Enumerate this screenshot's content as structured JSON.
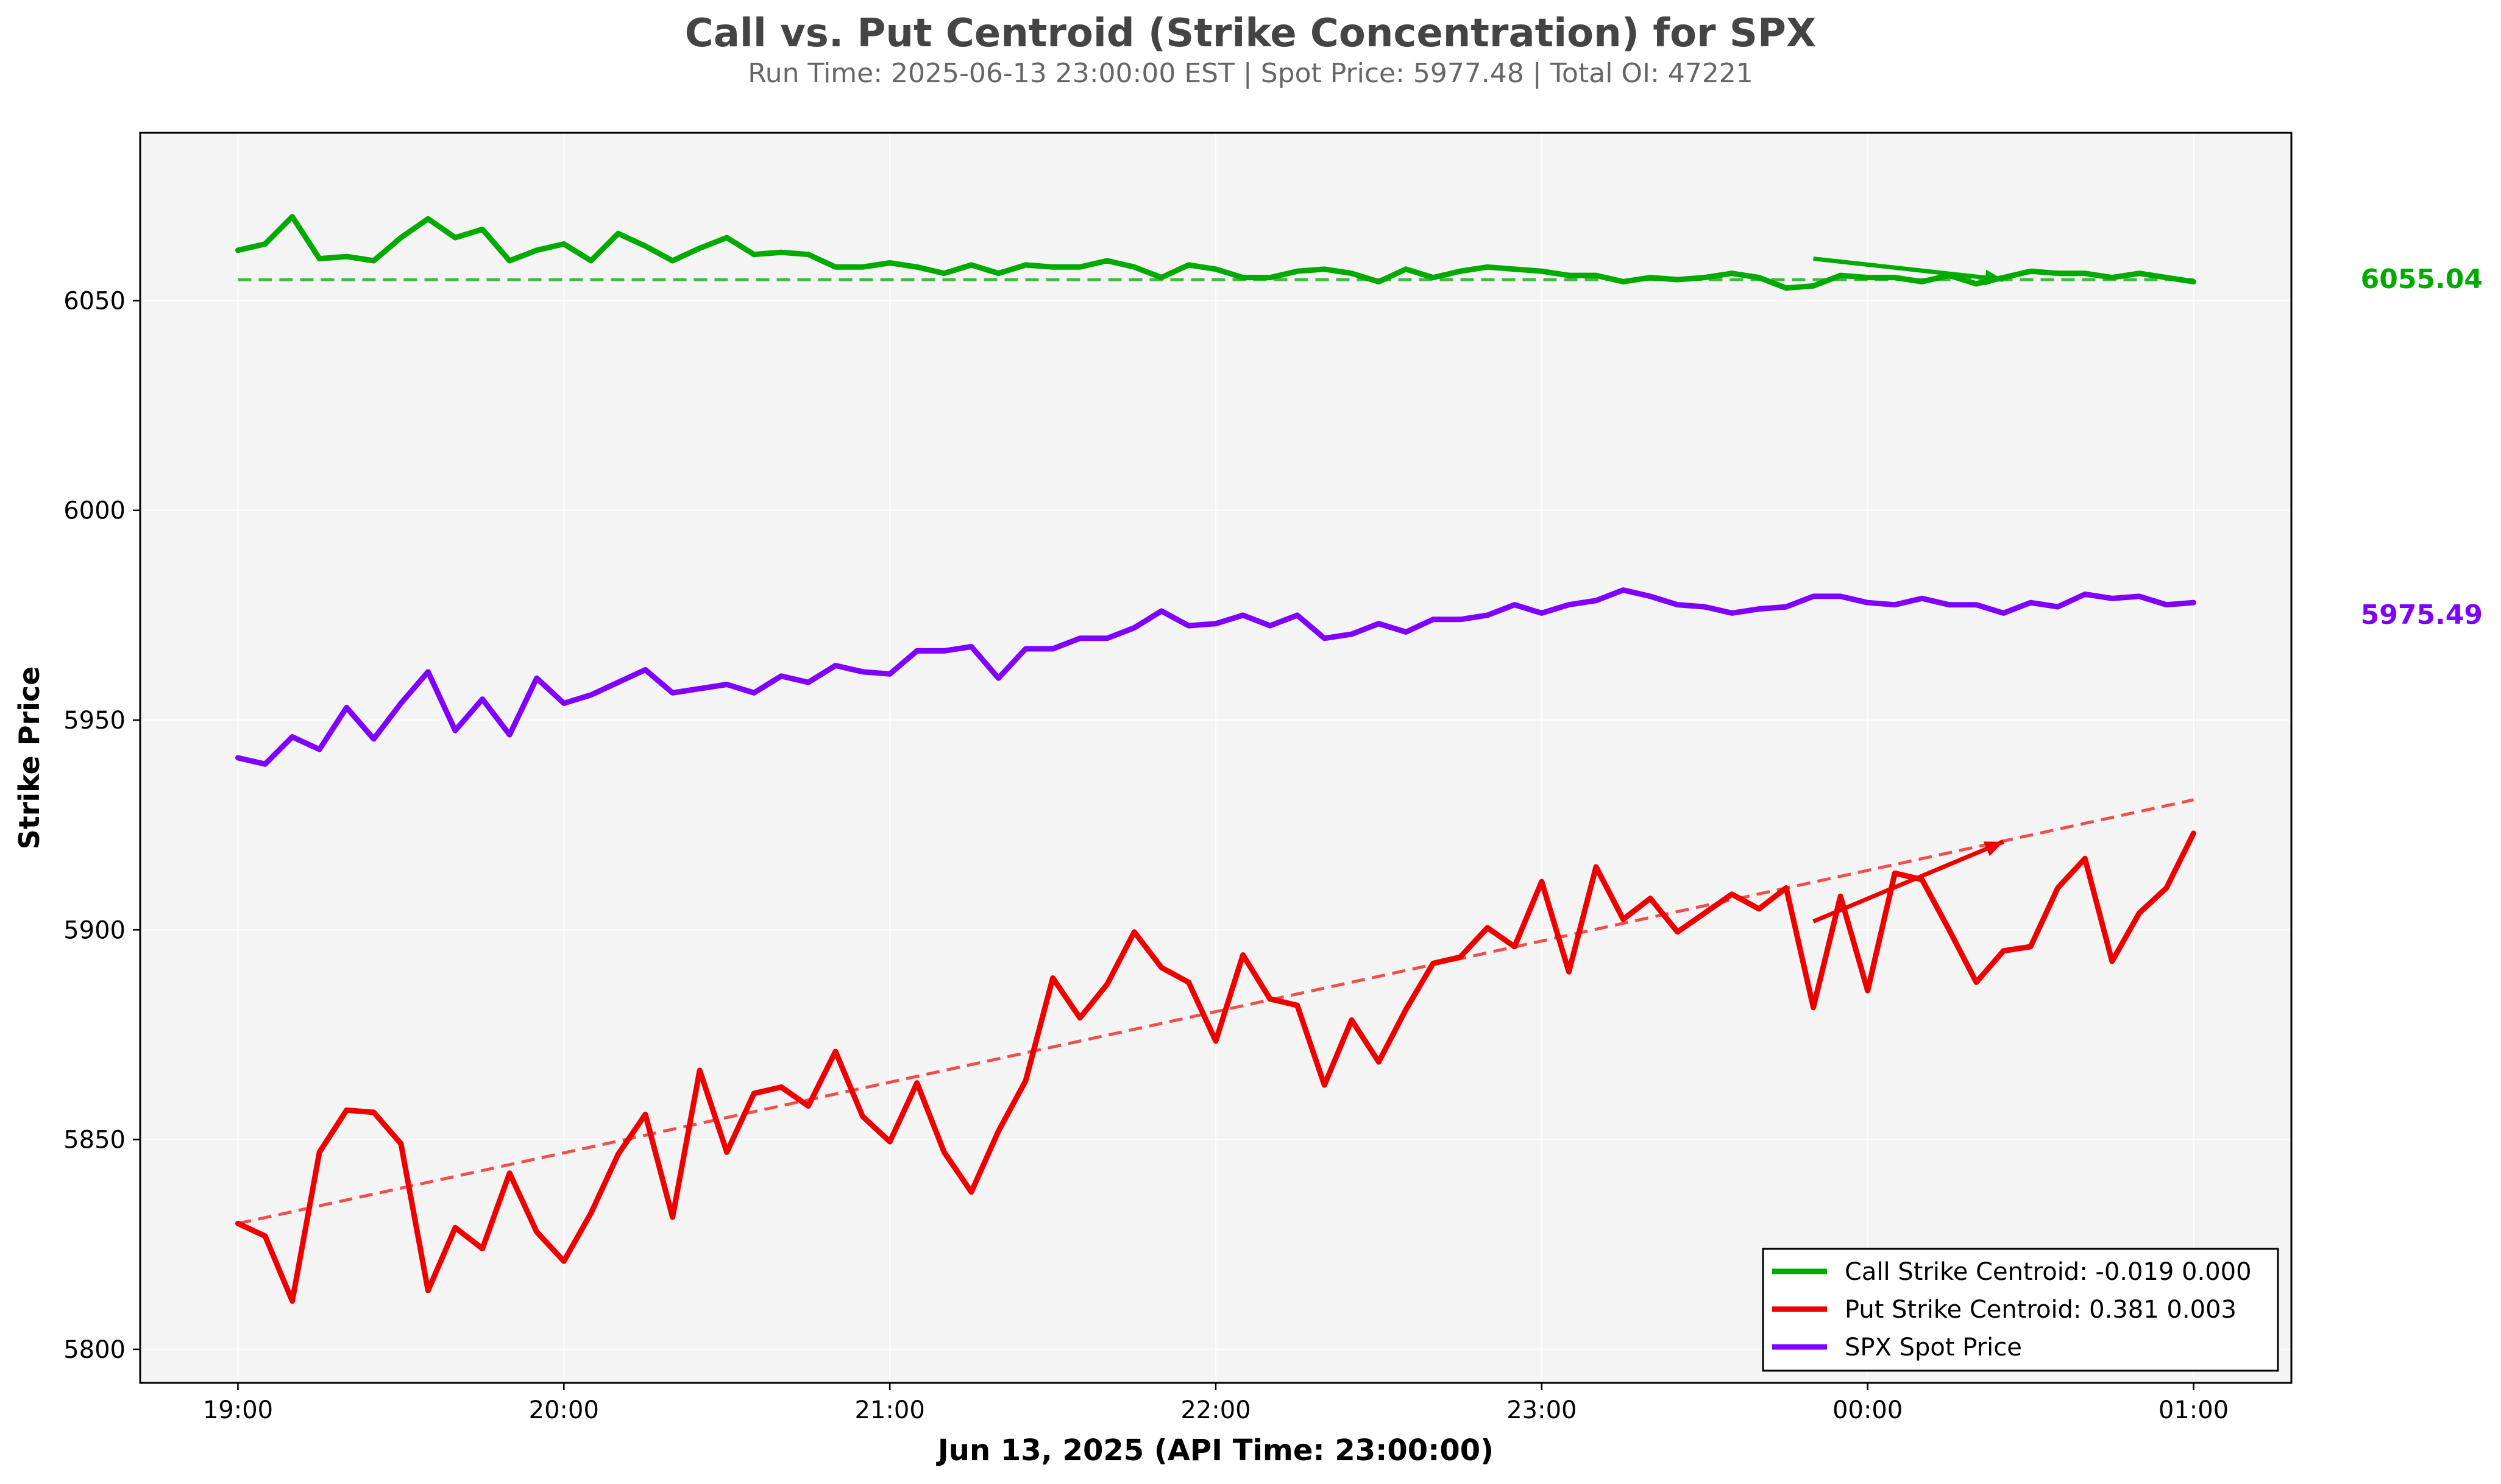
{
  "chart_data": {
    "type": "line",
    "title": "Call vs. Put Centroid (Strike Concentration) for SPX",
    "subtitle": "Run Time: 2025-06-13 23:00:00 EST | Spot Price: 5977.48 | Total OI: 47221",
    "xlabel": "Jun 13, 2025 (API Time: 23:00:00)",
    "ylabel": "Strike Price",
    "xlim": [
      "2025-06-13 18:42",
      "2025-06-14 01:18"
    ],
    "ylim": [
      5792,
      6090
    ],
    "x_ticks": [
      "19:00",
      "20:00",
      "21:00",
      "22:00",
      "23:00",
      "00:00",
      "01:00"
    ],
    "y_ticks": [
      5800,
      5850,
      5900,
      5950,
      6000,
      6050
    ],
    "grid": true,
    "legend_position": "lower-right",
    "x_start": "2025-06-13 19:00",
    "x_step_minutes": 5,
    "series": [
      {
        "name": "Call Strike Centroid: -0.019 0.000",
        "color": "#00aa00",
        "values": [
          6062,
          6063.5,
          6070,
          6060,
          6060.5,
          6059.5,
          6065,
          6069.5,
          6065,
          6067,
          6059.5,
          6062,
          6063.5,
          6059.5,
          6066,
          6063,
          6059.5,
          6062.5,
          6065,
          6061,
          6061.5,
          6061,
          6058,
          6058,
          6059,
          6058,
          6056.5,
          6058.5,
          6056.5,
          6058.5,
          6058,
          6058,
          6059.5,
          6058,
          6055.5,
          6058.5,
          6057.5,
          6055.5,
          6055.5,
          6057,
          6057.5,
          6056.5,
          6054.5,
          6057.5,
          6055.5,
          6057,
          6058,
          6057.5,
          6057,
          6056,
          6056,
          6054.5,
          6055.5,
          6055,
          6055.5,
          6056.5,
          6055.5,
          6053,
          6053.5,
          6056,
          6055.5,
          6055.5,
          6054.5,
          6056,
          6054,
          6055.5,
          6057,
          6056.5,
          6056.5,
          6055.5,
          6056.5,
          6055.5,
          6054.5
        ]
      },
      {
        "name": "Put Strike Centroid: 0.381 0.003",
        "color": "#ee0000",
        "values": [
          5830,
          5827,
          5811.5,
          5847,
          5857,
          5856.5,
          5849,
          5814,
          5829,
          5824,
          5842,
          5828,
          5821,
          5832.5,
          5846.5,
          5856,
          5831.5,
          5866.5,
          5847,
          5861,
          5862.5,
          5858,
          5871,
          5855.5,
          5849.5,
          5863.5,
          5847,
          5837.5,
          5852,
          5864,
          5888.5,
          5879,
          5887,
          5899.5,
          5891,
          5887.5,
          5873.5,
          5894,
          5883.5,
          5882,
          5863,
          5878.5,
          5868.5,
          5881,
          5892,
          5893.5,
          5900.5,
          5896,
          5911.5,
          5890,
          5915,
          5902.5,
          5907.5,
          5899.5,
          5904,
          5908.5,
          5905,
          5910,
          5881.5,
          5908,
          5885.5,
          5913.5,
          5912,
          5900,
          5887.5,
          5895,
          5896,
          5910,
          5917,
          5892.5,
          5904,
          5910,
          5923
        ]
      },
      {
        "name": "SPX Spot Price",
        "color": "#8000ff",
        "values": [
          5941,
          5939.5,
          5946,
          5943,
          5953,
          5945.5,
          5954,
          5961.5,
          5947.5,
          5955,
          5946.5,
          5960,
          5954,
          5956,
          5959,
          5962,
          5956.5,
          5957.5,
          5958.5,
          5956.5,
          5960.5,
          5959,
          5963,
          5961.5,
          5961,
          5966.5,
          5966.5,
          5967.5,
          5960,
          5967,
          5967,
          5969.5,
          5969.5,
          5972,
          5976,
          5972.5,
          5973,
          5975,
          5972.5,
          5975,
          5969.5,
          5970.5,
          5973,
          5971,
          5974,
          5974,
          5975,
          5977.5,
          5975.5,
          5977.5,
          5978.5,
          5981,
          5979.5,
          5977.5,
          5977,
          5975.5,
          5976.5,
          5977,
          5979.5,
          5979.5,
          5978,
          5977.5,
          5979,
          5977.5,
          5977.5,
          5975.5,
          5978,
          5977,
          5980,
          5979,
          5979.5,
          5977.5,
          5978
        ]
      }
    ],
    "trendlines": [
      {
        "series": "Call Strike Centroid: -0.019 0.000",
        "color": "#33bb33",
        "style": "dashed",
        "from": {
          "x": "19:00",
          "y": 6055
        },
        "to": {
          "x": "01:00",
          "y": 6055
        }
      },
      {
        "series": "Put Strike Centroid: 0.381 0.003",
        "color": "#ee4444",
        "style": "dashed",
        "from": {
          "x": "19:00",
          "y": 5830
        },
        "to": {
          "x": "01:00",
          "y": 5931
        }
      }
    ],
    "arrows": [
      {
        "color": "#00aa00",
        "from": {
          "x": "23:50",
          "y": 6060
        },
        "to": {
          "x": "00:25",
          "y": 6055
        }
      },
      {
        "color": "#ee0000",
        "from": {
          "x": "23:50",
          "y": 5902
        },
        "to": {
          "x": "00:25",
          "y": 5921
        }
      }
    ],
    "end_labels": [
      {
        "text": "6055.04",
        "color": "#00aa00",
        "y": 6055
      },
      {
        "text": "5975.49",
        "color": "#8000ff",
        "y": 5975
      }
    ]
  }
}
